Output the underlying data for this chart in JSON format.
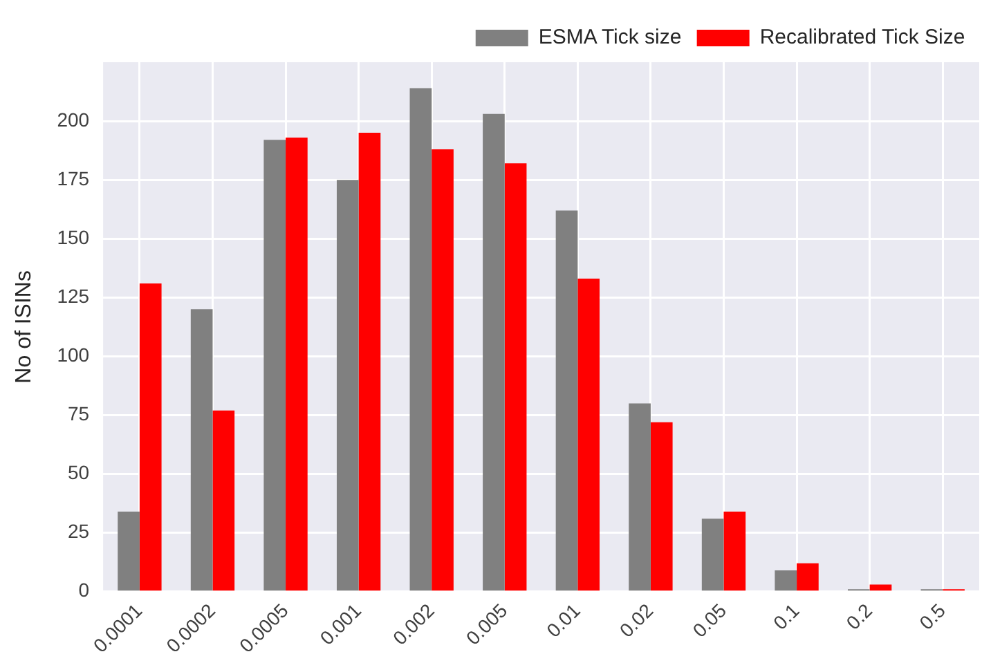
{
  "chart_data": {
    "type": "bar",
    "ylabel": "No of ISINs",
    "categories": [
      "0.0001",
      "0.0002",
      "0.0005",
      "0.001",
      "0.002",
      "0.005",
      "0.01",
      "0.02",
      "0.05",
      "0.1",
      "0.2",
      "0.5"
    ],
    "series": [
      {
        "name": "ESMA Tick size",
        "color": "#808080",
        "values": [
          34,
          120,
          192,
          175,
          214,
          203,
          162,
          80,
          31,
          9,
          1,
          1
        ]
      },
      {
        "name": "Recalibrated Tick Size",
        "color": "#ff0000",
        "values": [
          131,
          77,
          193,
          195,
          188,
          182,
          133,
          72,
          34,
          12,
          3,
          1
        ]
      }
    ],
    "ylim": [
      0,
      225
    ],
    "yticks": [
      0,
      25,
      50,
      75,
      100,
      125,
      150,
      175,
      200
    ],
    "grid": true,
    "legend": "top right"
  }
}
